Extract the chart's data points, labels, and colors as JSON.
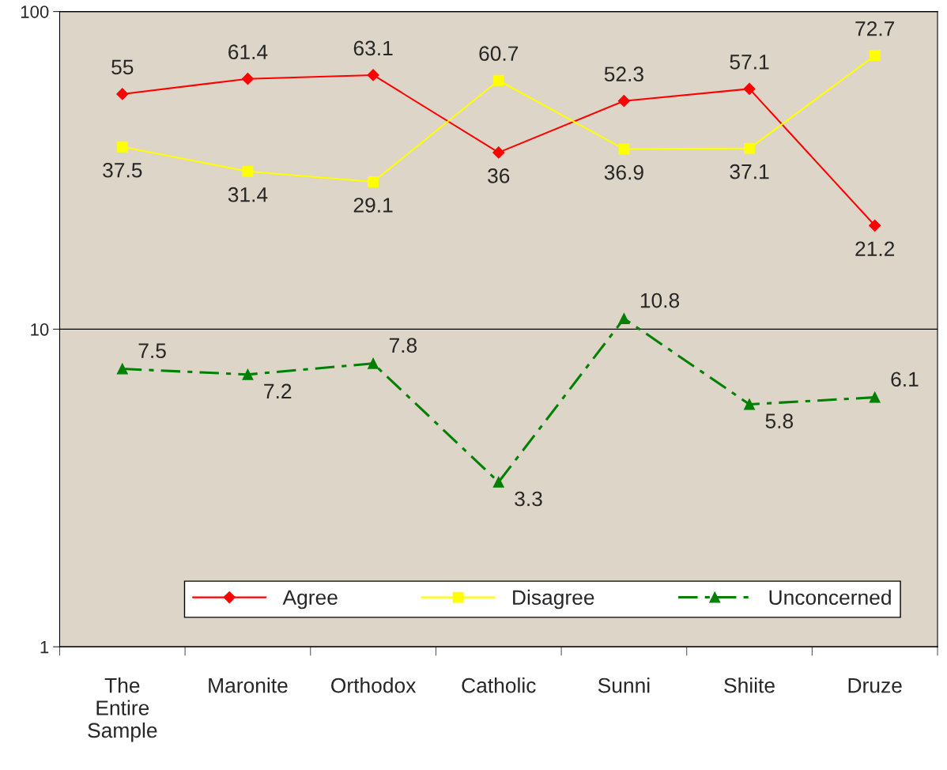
{
  "chart_data": {
    "type": "line",
    "categories": [
      "The\nEntire\nSample",
      "Maronite",
      "Orthodox",
      "Catholic",
      "Sunni",
      "Shiite",
      "Druze"
    ],
    "series": [
      {
        "name": "Agree",
        "color": "#ff0000",
        "marker": "diamond",
        "line_style": "solid",
        "values": [
          55,
          61.4,
          63.1,
          36,
          52.3,
          57.1,
          21.2
        ]
      },
      {
        "name": "Disagree",
        "color": "#ffff00",
        "marker": "square",
        "line_style": "solid",
        "values": [
          37.5,
          31.4,
          29.1,
          60.7,
          36.9,
          37.1,
          72.7
        ]
      },
      {
        "name": "Unconcerned",
        "color": "#008000",
        "marker": "triangle",
        "line_style": "dashed",
        "values": [
          7.5,
          7.2,
          7.8,
          3.3,
          10.8,
          5.8,
          6.1
        ]
      }
    ],
    "log": true,
    "ylim": [
      1,
      100
    ],
    "yticks": [
      1,
      10,
      100
    ],
    "grid": "y",
    "legend": "bottom",
    "data_labels": true
  }
}
